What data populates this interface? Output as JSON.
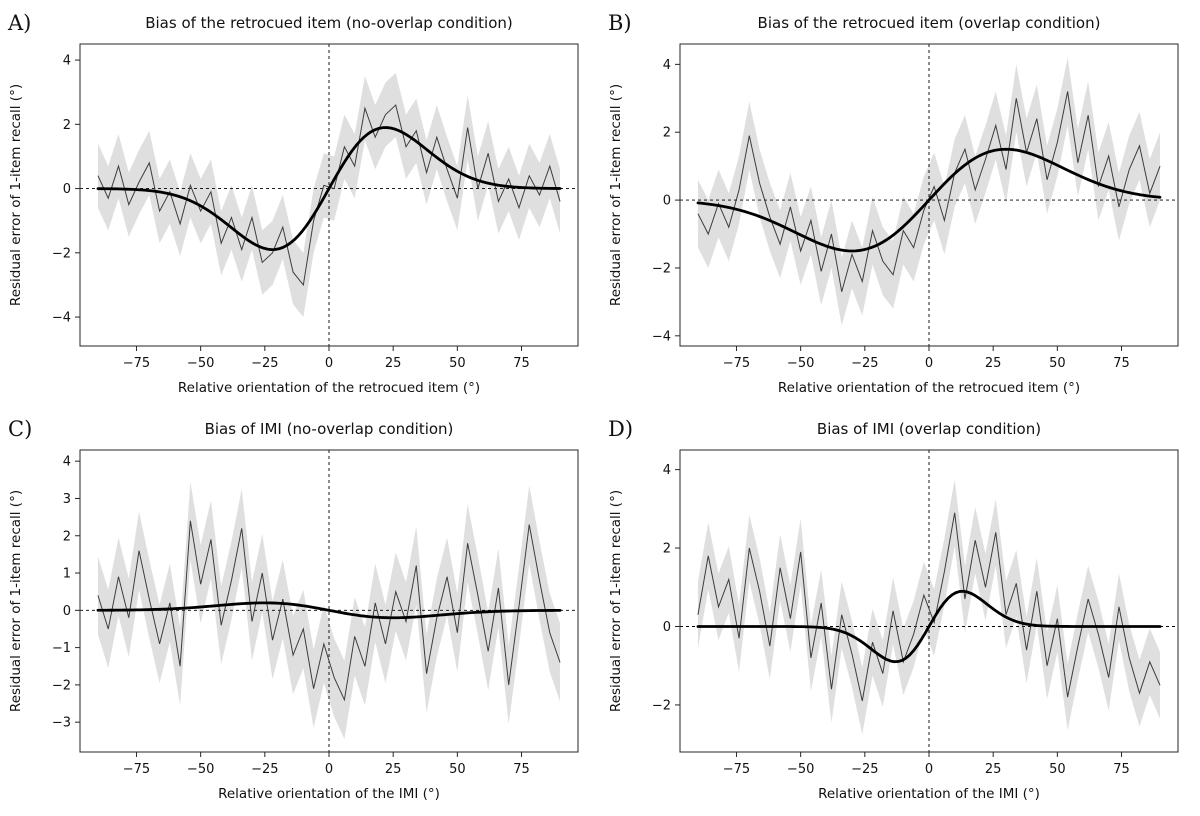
{
  "colors": {
    "background": "#ffffff",
    "fit_curve": "#000000",
    "noisy_line": "#3d3d3d",
    "band": "#c9c9c9",
    "spine": "#262626",
    "dashed": "#000000"
  },
  "chart_data": [
    {
      "type": "line",
      "panel_label": "A)",
      "title": "Bias of the retrocued item (no-overlap condition)",
      "xlabel": "Relative orientation of the retrocued item (°)",
      "ylabel": "Residual error of 1-item recall (°)",
      "xlim": [
        -97,
        97
      ],
      "ylim": [
        -4.9,
        4.5
      ],
      "xticks": [
        -75,
        -50,
        -25,
        0,
        25,
        50,
        75
      ],
      "yticks": [
        -4,
        -2,
        0,
        2,
        4
      ],
      "zero_lines": true,
      "x_start": -90,
      "x_step": 4,
      "noisy": [
        0.4,
        -0.3,
        0.7,
        -0.5,
        0.2,
        0.8,
        -0.7,
        -0.1,
        -1.1,
        0.1,
        -0.7,
        -0.1,
        -1.7,
        -0.9,
        -1.9,
        -0.9,
        -2.3,
        -2.0,
        -1.2,
        -2.6,
        -3.0,
        -1.0,
        0.1,
        0.0,
        1.3,
        0.7,
        2.5,
        1.6,
        2.3,
        2.6,
        1.3,
        1.8,
        0.5,
        1.6,
        0.6,
        -0.3,
        1.9,
        0.0,
        1.1,
        -0.4,
        0.3,
        -0.6,
        0.4,
        -0.2,
        0.7,
        -0.4
      ],
      "band_halfwidth": 1.0,
      "fit": {
        "form": "derivative_of_gaussian",
        "a": 0.1424,
        "w": 22,
        "peak_y": 1.9,
        "peak_x": 22
      }
    },
    {
      "type": "line",
      "panel_label": "B)",
      "title": "Bias of the retrocued item (overlap condition)",
      "xlabel": "Relative orientation of the retrocued item (°)",
      "ylabel": "Residual error of 1-item recall (°)",
      "xlim": [
        -97,
        97
      ],
      "ylim": [
        -4.3,
        4.6
      ],
      "xticks": [
        -75,
        -50,
        -25,
        0,
        25,
        50,
        75
      ],
      "yticks": [
        -4,
        -2,
        0,
        2,
        4
      ],
      "zero_lines": true,
      "x_start": -90,
      "x_step": 4,
      "noisy": [
        -0.4,
        -1.0,
        -0.1,
        -0.8,
        0.3,
        1.9,
        0.5,
        -0.5,
        -1.3,
        -0.2,
        -1.5,
        -0.6,
        -2.1,
        -1.0,
        -2.7,
        -1.6,
        -2.4,
        -0.9,
        -1.8,
        -2.2,
        -0.9,
        -1.4,
        -0.3,
        0.4,
        -0.6,
        0.8,
        1.5,
        0.3,
        1.2,
        2.2,
        0.9,
        3.0,
        1.4,
        2.4,
        0.6,
        1.7,
        3.2,
        1.1,
        2.5,
        0.4,
        1.3,
        -0.2,
        0.9,
        1.6,
        0.2,
        1.0
      ],
      "band_halfwidth": 1.0,
      "fit": {
        "form": "derivative_of_gaussian",
        "a": 0.0824,
        "w": 30,
        "peak_y": 1.5,
        "peak_x": 30
      }
    },
    {
      "type": "line",
      "panel_label": "C)",
      "title": "Bias of IMI (no-overlap condition)",
      "xlabel": "Relative orientation of the IMI (°)",
      "ylabel": "Residual error of 1-item recall (°)",
      "xlim": [
        -97,
        97
      ],
      "ylim": [
        -3.8,
        4.3
      ],
      "xticks": [
        -75,
        -50,
        -25,
        0,
        25,
        50,
        75
      ],
      "yticks": [
        -3,
        -2,
        -1,
        0,
        1,
        2,
        3,
        4
      ],
      "zero_lines": true,
      "x_start": -90,
      "x_step": 4,
      "noisy": [
        0.4,
        -0.5,
        0.9,
        -0.2,
        1.6,
        0.3,
        -0.9,
        0.2,
        -1.5,
        2.4,
        0.7,
        1.9,
        -0.4,
        0.8,
        2.2,
        -0.3,
        1.0,
        -0.8,
        0.3,
        -1.2,
        -0.5,
        -2.1,
        -0.9,
        -1.8,
        -2.4,
        -0.7,
        -1.5,
        0.2,
        -0.9,
        0.5,
        -0.3,
        1.2,
        -1.7,
        -0.2,
        0.9,
        -0.6,
        1.8,
        0.4,
        -1.1,
        0.6,
        -2.0,
        0.1,
        2.3,
        0.8,
        -0.6,
        -1.4
      ],
      "band_halfwidth": 1.05,
      "fit": {
        "form": "derivative_of_gaussian",
        "a": -0.0132,
        "w": 25,
        "peak_y": 0.2,
        "peak_x": -25
      }
    },
    {
      "type": "line",
      "panel_label": "D)",
      "title": "Bias of IMI (overlap condition)",
      "xlabel": "Relative orientation of the IMI (°)",
      "ylabel": "Residual error of 1-item recall (°)",
      "xlim": [
        -97,
        97
      ],
      "ylim": [
        -3.2,
        4.5
      ],
      "xticks": [
        -75,
        -50,
        -25,
        0,
        25,
        50,
        75
      ],
      "yticks": [
        -2,
        0,
        2,
        4
      ],
      "zero_lines": true,
      "x_start": -90,
      "x_step": 4,
      "noisy": [
        0.3,
        1.8,
        0.5,
        1.2,
        -0.3,
        2.0,
        0.9,
        -0.5,
        1.5,
        0.2,
        1.9,
        -0.8,
        0.6,
        -1.6,
        0.3,
        -0.7,
        -1.9,
        -0.4,
        -1.2,
        0.4,
        -0.9,
        -0.2,
        0.8,
        0.1,
        1.4,
        2.9,
        0.7,
        2.2,
        1.0,
        2.4,
        0.3,
        1.1,
        -0.6,
        0.9,
        -1.0,
        0.2,
        -1.8,
        -0.5,
        0.7,
        -0.2,
        -1.3,
        0.5,
        -0.8,
        -1.7,
        -0.9,
        -1.5
      ],
      "band_halfwidth": 0.85,
      "fit": {
        "form": "derivative_of_gaussian",
        "a": 0.114,
        "w": 13,
        "peak_y": 0.9,
        "peak_x": 13
      }
    }
  ]
}
